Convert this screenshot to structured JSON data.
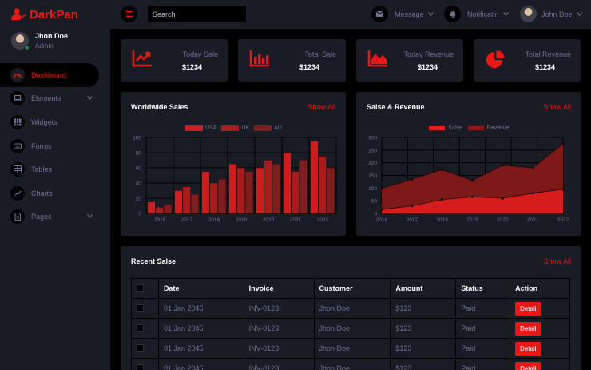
{
  "brand": {
    "name": "DarkPan"
  },
  "profile": {
    "name": "Jhon Doe",
    "role": "Admin"
  },
  "nav": {
    "items": [
      {
        "label": "Dashboard",
        "icon": "gauge-icon",
        "active": true
      },
      {
        "label": "Elements",
        "icon": "laptop-icon",
        "dropdown": true
      },
      {
        "label": "Widgets",
        "icon": "grid-icon"
      },
      {
        "label": "Forms",
        "icon": "keyboard-icon"
      },
      {
        "label": "Tables",
        "icon": "table-icon"
      },
      {
        "label": "Charts",
        "icon": "chart-icon"
      },
      {
        "label": "Pages",
        "icon": "file-icon",
        "dropdown": true
      }
    ]
  },
  "topbar": {
    "search_placeholder": "Search",
    "message_label": "Message",
    "notification_label": "Notificatin",
    "user_name": "John Doe"
  },
  "stats": [
    {
      "label": "Today Sale",
      "value": "$1234",
      "icon": "line-chart-icon"
    },
    {
      "label": "Total Sale",
      "value": "$1234",
      "icon": "bar-chart-icon"
    },
    {
      "label": "Today Revenue",
      "value": "$1234",
      "icon": "area-chart-icon"
    },
    {
      "label": "Total Revenue",
      "value": "$1234",
      "icon": "pie-chart-icon"
    }
  ],
  "worldwide": {
    "title": "Worldwide Sales",
    "show_all": "Show All"
  },
  "revenue": {
    "title": "Salse & Revenue",
    "show_all": "Show All"
  },
  "recent": {
    "title": "Recent Salse",
    "show_all": "Show All",
    "columns": [
      "Date",
      "Invoice",
      "Customer",
      "Amount",
      "Status",
      "Action"
    ],
    "rows": [
      {
        "date": "01 Jan 2045",
        "invoice": "INV-0123",
        "customer": "Jhon Doe",
        "amount": "$123",
        "status": "Paid",
        "action": "Detail"
      },
      {
        "date": "01 Jan 2045",
        "invoice": "INV-0123",
        "customer": "Jhon Doe",
        "amount": "$123",
        "status": "Paid",
        "action": "Detail"
      },
      {
        "date": "01 Jan 2045",
        "invoice": "INV-0123",
        "customer": "Jhon Doe",
        "amount": "$123",
        "status": "Paid",
        "action": "Detail"
      },
      {
        "date": "01 Jan 2045",
        "invoice": "INV-0123",
        "customer": "Jhon Doe",
        "amount": "$123",
        "status": "Paid",
        "action": "Detail"
      }
    ]
  },
  "colors": {
    "accent": "#eb1616",
    "panel": "#191c24",
    "background": "#000000",
    "text": "#6c7293"
  },
  "chart_data": [
    {
      "type": "bar",
      "title": "Worldwide Sales",
      "categories": [
        "2016",
        "2017",
        "2018",
        "2019",
        "2020",
        "2021",
        "2022"
      ],
      "series": [
        {
          "name": "USA",
          "values": [
            15,
            30,
            55,
            65,
            60,
            80,
            95
          ],
          "color": "#cf1d1d"
        },
        {
          "name": "UK",
          "values": [
            8,
            35,
            40,
            60,
            70,
            55,
            75
          ],
          "color": "#a81c1c"
        },
        {
          "name": "AU",
          "values": [
            12,
            25,
            45,
            55,
            65,
            70,
            60
          ],
          "color": "#7d1f1f"
        }
      ],
      "ylim": [
        0,
        100
      ],
      "yticks": [
        0,
        20,
        40,
        60,
        80,
        100
      ],
      "legend": "top-center",
      "grid": true
    },
    {
      "type": "area",
      "title": "Salse & Revenue",
      "categories": [
        "2016",
        "2017",
        "2018",
        "2019",
        "2020",
        "2021",
        "2022"
      ],
      "series": [
        {
          "name": "Salse",
          "values": [
            15,
            30,
            55,
            65,
            60,
            80,
            95
          ],
          "color": "#e11d1d"
        },
        {
          "name": "Revenue",
          "values": [
            99,
            135,
            173,
            130,
            190,
            180,
            275
          ],
          "color": "#8a1a1a"
        }
      ],
      "ylim": [
        0,
        300
      ],
      "yticks": [
        0,
        50,
        100,
        150,
        200,
        250,
        300
      ],
      "legend": "top-center",
      "grid": true
    }
  ]
}
